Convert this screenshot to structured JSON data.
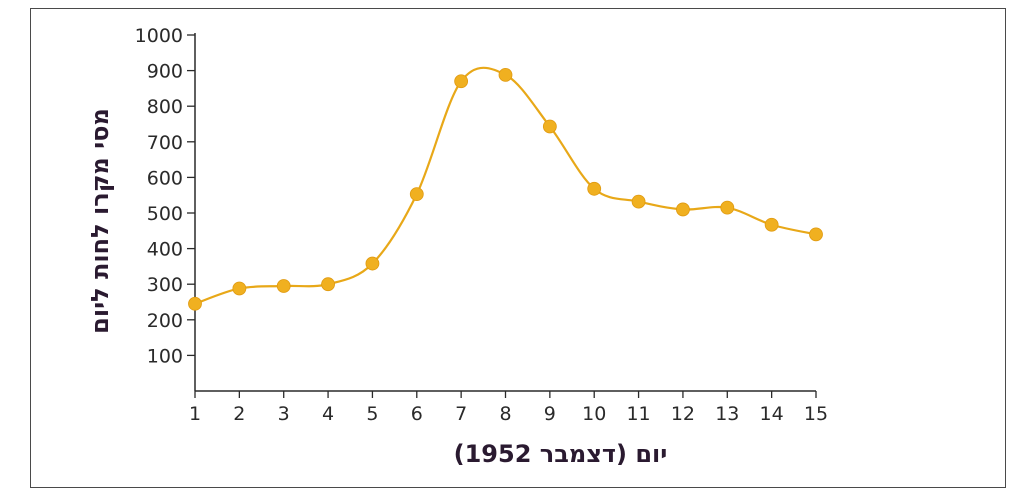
{
  "chart_data": {
    "type": "line",
    "title": "",
    "xlabel": "יום (דצמבר 1952)",
    "ylabel": "מסי מקרו לחות ליום",
    "x": [
      1,
      2,
      3,
      4,
      5,
      6,
      7,
      8,
      9,
      10,
      11,
      12,
      13,
      14,
      15
    ],
    "series": [
      {
        "values": [
          245,
          288,
          295,
          300,
          358,
          553,
          870,
          888,
          743,
          568,
          532,
          510,
          515,
          467,
          440
        ],
        "color": "#f0b020"
      }
    ],
    "xlim": [
      1,
      15
    ],
    "ylim": [
      0,
      1000
    ],
    "yticks": [
      100,
      200,
      300,
      400,
      500,
      600,
      700,
      800,
      900,
      1000
    ],
    "xticks": [
      1,
      2,
      3,
      4,
      5,
      6,
      7,
      8,
      9,
      10,
      11,
      12,
      13,
      14,
      15
    ],
    "line_color": "#e8a818",
    "marker_color": "#f0b020",
    "axis_color": "#2a2a2a",
    "grid": false,
    "smooth": true
  }
}
